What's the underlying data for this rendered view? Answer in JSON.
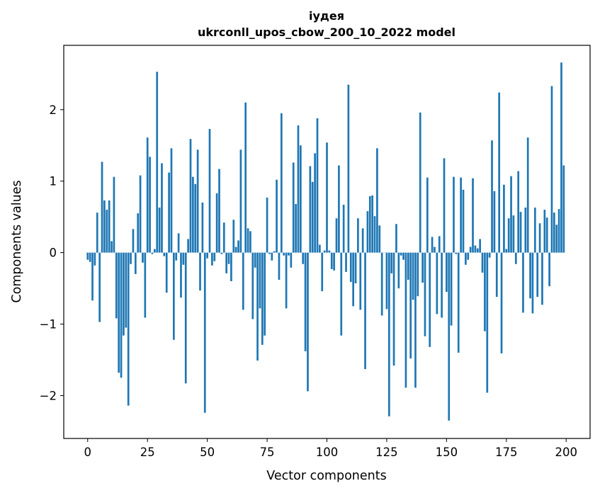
{
  "chart_data": {
    "type": "bar",
    "title": "іудея",
    "subtitle": "ukrconll_upos_cbow_200_10_2022 model",
    "xlabel": "Vector components",
    "ylabel": "Components values",
    "xlim": [
      -10,
      210
    ],
    "ylim": [
      -2.6,
      2.9
    ],
    "xticks": [
      0,
      25,
      50,
      75,
      100,
      125,
      150,
      175,
      200
    ],
    "xtick_labels": [
      "0",
      "25",
      "50",
      "75",
      "100",
      "125",
      "150",
      "175",
      "200"
    ],
    "yticks": [
      -2,
      -1,
      0,
      1,
      2
    ],
    "ytick_labels": [
      "−2",
      "−1",
      "0",
      "1",
      "2"
    ],
    "grid": false,
    "color": "#1f77b4",
    "x": [
      0,
      1,
      2,
      3,
      4,
      5,
      6,
      7,
      8,
      9,
      10,
      11,
      12,
      13,
      14,
      15,
      16,
      17,
      18,
      19,
      20,
      21,
      22,
      23,
      24,
      25,
      26,
      27,
      28,
      29,
      30,
      31,
      32,
      33,
      34,
      35,
      36,
      37,
      38,
      39,
      40,
      41,
      42,
      43,
      44,
      45,
      46,
      47,
      48,
      49,
      50,
      51,
      52,
      53,
      54,
      55,
      56,
      57,
      58,
      59,
      60,
      61,
      62,
      63,
      64,
      65,
      66,
      67,
      68,
      69,
      70,
      71,
      72,
      73,
      74,
      75,
      76,
      77,
      78,
      79,
      80,
      81,
      82,
      83,
      84,
      85,
      86,
      87,
      88,
      89,
      90,
      91,
      92,
      93,
      94,
      95,
      96,
      97,
      98,
      99,
      100,
      101,
      102,
      103,
      104,
      105,
      106,
      107,
      108,
      109,
      110,
      111,
      112,
      113,
      114,
      115,
      116,
      117,
      118,
      119,
      120,
      121,
      122,
      123,
      124,
      125,
      126,
      127,
      128,
      129,
      130,
      131,
      132,
      133,
      134,
      135,
      136,
      137,
      138,
      139,
      140,
      141,
      142,
      143,
      144,
      145,
      146,
      147,
      148,
      149,
      150,
      151,
      152,
      153,
      154,
      155,
      156,
      157,
      158,
      159,
      160,
      161,
      162,
      163,
      164,
      165,
      166,
      167,
      168,
      169,
      170,
      171,
      172,
      173,
      174,
      175,
      176,
      177,
      178,
      179,
      180,
      181,
      182,
      183,
      184,
      185,
      186,
      187,
      188,
      189,
      190,
      191,
      192,
      193,
      194,
      195,
      196,
      197,
      198,
      199
    ],
    "values": [
      -0.1,
      -0.13,
      -0.67,
      -0.18,
      0.56,
      -0.97,
      1.27,
      0.73,
      0.6,
      0.73,
      0.16,
      1.06,
      -0.92,
      -1.68,
      -1.75,
      -1.16,
      -1.05,
      -2.14,
      -0.16,
      0.33,
      -0.3,
      0.55,
      1.08,
      -0.14,
      -0.91,
      1.61,
      1.34,
      -0.02,
      0.05,
      2.53,
      0.63,
      1.25,
      -0.05,
      -0.56,
      1.12,
      1.46,
      -1.22,
      -0.11,
      0.27,
      -0.63,
      -0.17,
      -1.83,
      0.19,
      1.59,
      1.06,
      0.96,
      1.44,
      -0.53,
      0.7,
      -2.24,
      -0.08,
      1.73,
      -0.18,
      -0.12,
      0.83,
      1.17,
      -0.02,
      0.42,
      -0.29,
      -0.16,
      -0.4,
      0.46,
      0.08,
      0.17,
      1.44,
      -0.8,
      2.1,
      0.34,
      0.3,
      -0.93,
      -0.21,
      -1.51,
      -0.78,
      -1.29,
      -1.16,
      0.77,
      -0.02,
      -0.11,
      0.02,
      1.02,
      -0.38,
      1.95,
      -0.04,
      -0.78,
      -0.04,
      -0.21,
      1.26,
      0.68,
      1.78,
      1.5,
      -0.16,
      -1.38,
      -1.94,
      1.21,
      0.99,
      1.39,
      1.88,
      0.11,
      -0.54,
      0.03,
      1.54,
      0.03,
      -0.23,
      -0.25,
      0.48,
      1.22,
      -1.16,
      0.67,
      -0.27,
      2.35,
      -0.41,
      -0.75,
      -0.43,
      0.48,
      -0.8,
      0.34,
      -1.63,
      0.58,
      0.79,
      0.8,
      0.51,
      1.46,
      0.38,
      -0.88,
      0.0,
      -0.79,
      -2.29,
      -0.29,
      -1.58,
      0.4,
      -0.5,
      -0.04,
      -0.1,
      -1.89,
      -0.38,
      -1.48,
      -0.66,
      -1.89,
      -0.61,
      1.96,
      -0.42,
      -1.17,
      1.05,
      -1.32,
      0.22,
      0.08,
      -0.86,
      0.23,
      -0.91,
      1.32,
      -0.55,
      -2.35,
      -1.02,
      1.06,
      -0.02,
      -1.4,
      1.05,
      0.88,
      -0.17,
      -0.1,
      0.08,
      1.04,
      0.1,
      0.06,
      0.19,
      -0.28,
      -1.1,
      -1.96,
      -0.07,
      1.57,
      0.86,
      -0.62,
      2.24,
      -1.41,
      0.95,
      0.05,
      0.48,
      1.07,
      0.52,
      -0.16,
      1.14,
      0.57,
      -0.84,
      0.63,
      1.61,
      -0.64,
      -0.85,
      0.63,
      -0.62,
      0.41,
      -0.73,
      0.6,
      0.49,
      -0.47,
      2.33,
      0.56,
      0.39,
      0.61,
      2.66,
      1.22
    ]
  }
}
